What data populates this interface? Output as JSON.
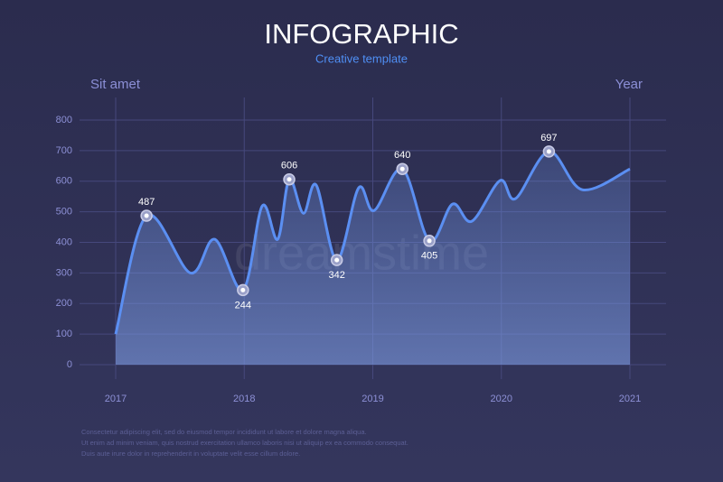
{
  "chart_data": {
    "type": "line",
    "title": "INFOGRAPHIC",
    "subtitle": "Creative template",
    "y_label": "Sit amet",
    "x_label": "Year",
    "watermark": "dreamstime",
    "footer": [
      "Consectetur adipiscing elit, sed do eiusmod tempor incididunt ut labore et dolore magna aliqua.",
      "Ut enim ad minim veniam, quis nostrud exercitation ullamco laboris nisi ut aliquip ex ea commodo consequat.",
      "Duis aute irure dolor in reprehenderit in voluptate velit esse cillum dolore."
    ],
    "xlim": [
      2017,
      2021
    ],
    "xticks": [
      2017,
      2018,
      2019,
      2020,
      2021
    ],
    "ylim": [
      0,
      800
    ],
    "yticks": [
      0,
      100,
      200,
      300,
      400,
      500,
      600,
      700,
      800
    ],
    "grid": true,
    "series": [
      {
        "color": "#5b8ff2",
        "x": [
          2017.0,
          2017.24,
          2017.58,
          2017.77,
          2017.99,
          2018.14,
          2018.26,
          2018.35,
          2018.46,
          2018.56,
          2018.72,
          2018.89,
          2019.01,
          2019.23,
          2019.44,
          2019.62,
          2019.77,
          2019.99,
          2020.11,
          2020.37,
          2020.63,
          2021.0
        ],
        "values": [
          100,
          487,
          300,
          410,
          244,
          519,
          410,
          606,
          495,
          587,
          342,
          578,
          504,
          640,
          405,
          525,
          469,
          602,
          543,
          697,
          572,
          640
        ],
        "marked_points": [
          1,
          4,
          7,
          10,
          13,
          14,
          19
        ]
      }
    ]
  }
}
